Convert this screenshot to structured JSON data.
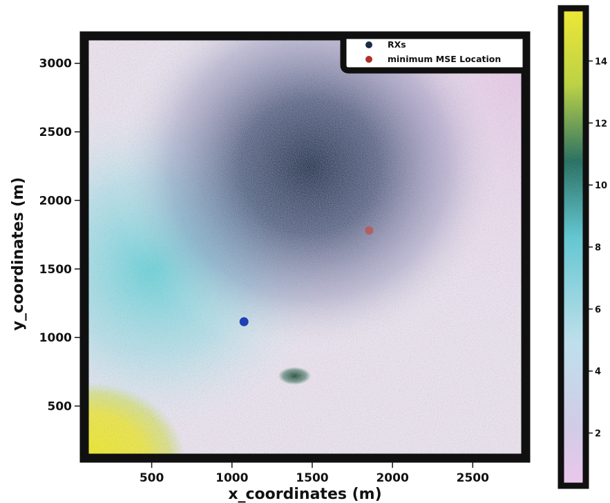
{
  "chart_data": {
    "type": "heatmap",
    "title": "",
    "xlabel": "x_coordinates (m)",
    "ylabel": "y_coordinates (m)",
    "xlim": [
      80,
      2830
    ],
    "ylim": [
      120,
      3200
    ],
    "x_ticks": [
      500,
      1000,
      1500,
      2000,
      2500
    ],
    "y_ticks": [
      500,
      1000,
      1500,
      2000,
      2500,
      3000
    ],
    "grid": false,
    "colorbar": {
      "min": 0.3,
      "max": 15.7,
      "ticks": [
        2,
        4,
        6,
        8,
        10,
        12,
        14
      ],
      "colormap": [
        "#f0c8f0",
        "#c8d8ec",
        "#bfeaf4",
        "#5cc8d4",
        "#1f6b5c",
        "#bcd43a",
        "#f4ec2a"
      ]
    },
    "legend": {
      "placement": "top-right",
      "entries": [
        {
          "label": "RXs",
          "color": "#1c2a4a"
        },
        {
          "label": "minimum MSE Location",
          "color": "#b03028"
        }
      ]
    },
    "series": [
      {
        "name": "RXs",
        "points": [
          {
            "x": 1075,
            "y": 1115
          }
        ]
      },
      {
        "name": "minimum MSE Location",
        "points": [
          {
            "x": 1855,
            "y": 1780
          }
        ]
      }
    ],
    "hotspot": {
      "x": 1390,
      "y": 720
    },
    "colors": {
      "frame": "#101010",
      "rx_marker": "#1f3fb4",
      "min_mse_marker": "#c0504d",
      "low_value": "#f6e4f6",
      "mid_value": "#29405a",
      "high_value": "#eeea28"
    }
  }
}
